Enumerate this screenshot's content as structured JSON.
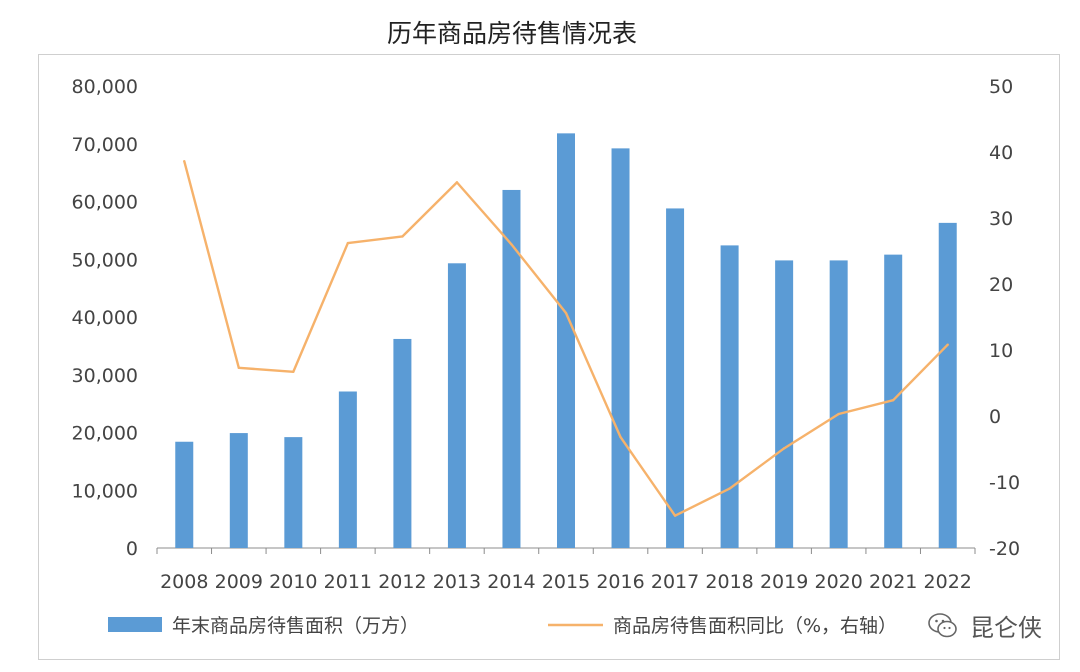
{
  "title": "历年商品房待售情况表",
  "watermark": "昆仑侠",
  "colors": {
    "bar": "#5b9bd5",
    "line": "#f6b26b",
    "axis": "#8c8c8c",
    "text": "#444444"
  },
  "chart_data": {
    "type": "bar",
    "title": "历年商品房待售情况表",
    "categories": [
      "2008",
      "2009",
      "2010",
      "2011",
      "2012",
      "2013",
      "2014",
      "2015",
      "2016",
      "2017",
      "2018",
      "2019",
      "2020",
      "2021",
      "2022"
    ],
    "series": [
      {
        "name": "年末商品房待售面积（万方）",
        "type": "bar",
        "axis": "left",
        "values": [
          18400,
          19900,
          19200,
          27100,
          36200,
          49300,
          62000,
          71800,
          69200,
          58800,
          52400,
          49800,
          49800,
          50800,
          56300
        ]
      },
      {
        "name": "商品房待售面积同比（%，右轴）",
        "type": "line",
        "axis": "right",
        "values": [
          38.6,
          7.3,
          6.7,
          26.2,
          27.2,
          35.4,
          26.0,
          15.6,
          -3.2,
          -15.1,
          -11.0,
          -4.9,
          0.3,
          2.4,
          10.8
        ]
      }
    ],
    "y_left": {
      "ylim": [
        0,
        80000
      ],
      "ticks": [
        "0",
        "10,000",
        "20,000",
        "30,000",
        "40,000",
        "50,000",
        "60,000",
        "70,000",
        "80,000"
      ]
    },
    "y_right": {
      "ylim": [
        -20,
        50
      ],
      "ticks": [
        "-20",
        "-10",
        "0",
        "10",
        "20",
        "30",
        "40",
        "50"
      ]
    },
    "grid": false,
    "legend_position": "bottom"
  }
}
